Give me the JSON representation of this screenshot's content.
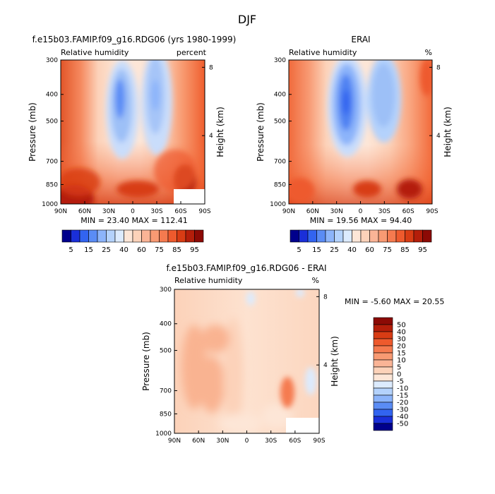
{
  "figure": {
    "title": "DJF"
  },
  "chart_data": [
    {
      "type": "heatmap",
      "title": "f.e15b03.FAMIP.f09_g16.RDG06 (yrs 1980-1999)",
      "subtitle_left": "Relative humidity",
      "subtitle_right": "percent",
      "xlabel": "",
      "ylabel": "Pressure (mb)",
      "ylabel_right": "Height (km)",
      "x_ticks": [
        "90N",
        "60N",
        "30N",
        "0",
        "30S",
        "60S",
        "90S"
      ],
      "y_ticks": [
        "300",
        "400",
        "500",
        "700",
        "850",
        "1000"
      ],
      "y_right_ticks": [
        "8",
        "4"
      ],
      "stats": "MIN =  23.40   MAX = 112.41",
      "min": 23.4,
      "max": 112.41,
      "colorbar": {
        "labels": [
          "5",
          "15",
          "25",
          "40",
          "60",
          "75",
          "85",
          "95"
        ],
        "colors": [
          "#00008c",
          "#1a2fd9",
          "#3264f0",
          "#5a8cf5",
          "#8cb4fa",
          "#b4d2fc",
          "#dcebfe",
          "#fde6d7",
          "#fcd2b9",
          "#fab496",
          "#f89a73",
          "#f57a4f",
          "#ee5a2d",
          "#d83c14",
          "#b41e0a",
          "#8c0a05"
        ]
      }
    },
    {
      "type": "heatmap",
      "title": "ERAI",
      "subtitle_left": "Relative humidity",
      "subtitle_right": "%",
      "xlabel": "",
      "ylabel": "Pressure (mb)",
      "ylabel_right": "Height (km)",
      "x_ticks": [
        "90N",
        "60N",
        "30N",
        "0",
        "30S",
        "60S",
        "90S"
      ],
      "y_ticks": [
        "300",
        "400",
        "500",
        "700",
        "850",
        "1000"
      ],
      "y_right_ticks": [
        "8",
        "4"
      ],
      "stats": "MIN =  19.56   MAX =  94.40",
      "min": 19.56,
      "max": 94.4,
      "colorbar": {
        "labels": [
          "5",
          "15",
          "25",
          "40",
          "60",
          "75",
          "85",
          "95"
        ],
        "colors": [
          "#00008c",
          "#1a2fd9",
          "#3264f0",
          "#5a8cf5",
          "#8cb4fa",
          "#b4d2fc",
          "#dcebfe",
          "#fde6d7",
          "#fcd2b9",
          "#fab496",
          "#f89a73",
          "#f57a4f",
          "#ee5a2d",
          "#d83c14",
          "#b41e0a",
          "#8c0a05"
        ]
      }
    },
    {
      "type": "heatmap",
      "title": "f.e15b03.FAMIP.f09_g16.RDG06 - ERAI",
      "subtitle_left": "Relative humidity",
      "subtitle_right": "%",
      "xlabel": "",
      "ylabel": "Pressure (mb)",
      "ylabel_right": "Height (km)",
      "x_ticks": [
        "90N",
        "60N",
        "30N",
        "0",
        "30S",
        "60S",
        "90S"
      ],
      "y_ticks": [
        "300",
        "400",
        "500",
        "700",
        "850",
        "1000"
      ],
      "y_right_ticks": [
        "8",
        "4"
      ],
      "stats": "MIN =   -5.60   MAX =  20.55",
      "min": -5.6,
      "max": 20.55,
      "colorbar": {
        "labels": [
          "50",
          "40",
          "30",
          "20",
          "15",
          "10",
          "5",
          "0",
          "-5",
          "-10",
          "-15",
          "-20",
          "-30",
          "-40",
          "-50"
        ],
        "colors": [
          "#8c0a05",
          "#b41e0a",
          "#d83c14",
          "#ee5a2d",
          "#f57a4f",
          "#f89a73",
          "#fab496",
          "#fcd2b9",
          "#fde6d7",
          "#dcebfe",
          "#b4d2fc",
          "#8cb4fa",
          "#5a8cf5",
          "#3264f0",
          "#1a2fd9",
          "#00008c"
        ]
      }
    }
  ]
}
